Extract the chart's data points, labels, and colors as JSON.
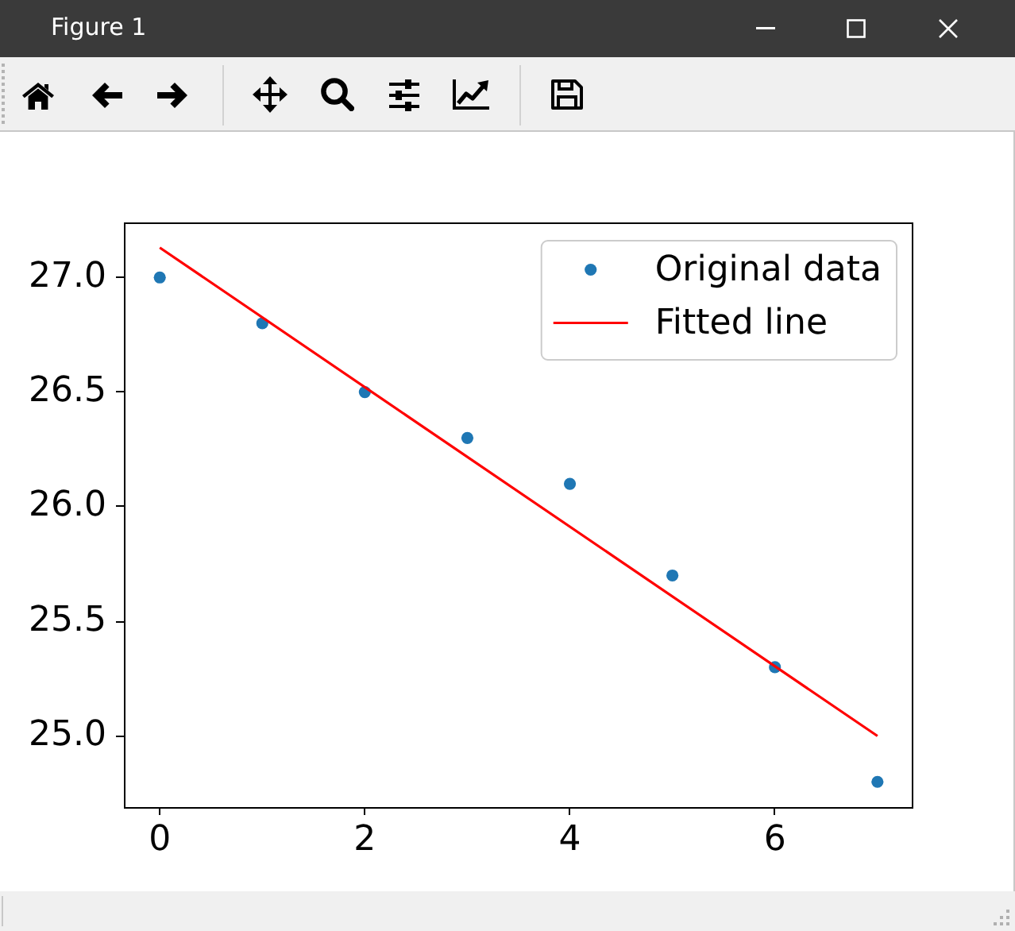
{
  "chart_data": {
    "type": "scatter",
    "annotations": [
      "Figure 1"
    ],
    "xlim": [
      -0.35,
      7.35
    ],
    "xticks": [
      0,
      2,
      4,
      6
    ],
    "ylim": [
      24.69,
      27.24
    ],
    "yticks": [
      {
        "value": 25,
        "label": "25.0"
      },
      {
        "value": 25.5,
        "label": "25.5"
      },
      {
        "value": 26,
        "label": "26.0"
      },
      {
        "value": 26.5,
        "label": "26.5"
      },
      {
        "value": 27,
        "label": "27.0"
      }
    ],
    "grid": false,
    "legend": "top right",
    "series": [
      {
        "name": "Original data",
        "type": "scatter",
        "marker": "circle",
        "color": "#1f77b4",
        "x": [
          0,
          1,
          2,
          3,
          4,
          5,
          6,
          7
        ],
        "values": [
          27.0,
          26.8,
          26.5,
          26.3,
          26.1,
          25.7,
          25.3,
          24.8
        ]
      },
      {
        "name": "Fitted line",
        "type": "line",
        "marker": "none",
        "line_style": "solid",
        "color": "#ff0000",
        "x": [
          0,
          7
        ],
        "values": [
          27.13,
          25.0
        ]
      }
    ]
  }
}
